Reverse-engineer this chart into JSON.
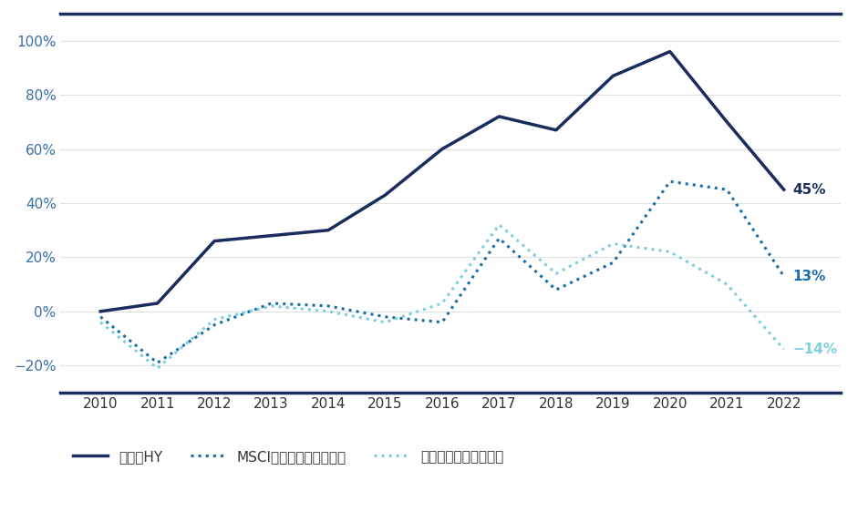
{
  "title": "",
  "years": [
    2010,
    2011,
    2012,
    2013,
    2014,
    2015,
    2016,
    2017,
    2018,
    2019,
    2020,
    2021,
    2022
  ],
  "asia_hy": [
    0,
    3,
    26,
    28,
    30,
    43,
    60,
    72,
    67,
    87,
    96,
    70,
    45
  ],
  "msci_asia_pacific": [
    -2,
    -19,
    -5,
    3,
    2,
    -2,
    -4,
    27,
    8,
    18,
    48,
    45,
    13
  ],
  "hang_seng": [
    -4,
    -21,
    -3,
    2,
    0,
    -4,
    3,
    32,
    14,
    25,
    22,
    10,
    -14
  ],
  "asia_hy_color": "#1a2b5e",
  "msci_color": "#1a6ea8",
  "hang_seng_color": "#7ecfdd",
  "end_labels": {
    "asia_hy": "45%",
    "msci": "13%",
    "hang_seng": "−14%"
  },
  "legend_labels": [
    "アジアHY",
    "MSCIアジアパシフィック",
    "ハンセンインデックス"
  ],
  "ylim": [
    -30,
    110
  ],
  "yticks": [
    -20,
    0,
    20,
    40,
    60,
    80,
    100
  ],
  "ytick_labels": [
    "−20%",
    "0%",
    "20%",
    "40%",
    "60%",
    "80%",
    "100%"
  ],
  "background_color": "#ffffff",
  "border_color": "#1a2b5e"
}
